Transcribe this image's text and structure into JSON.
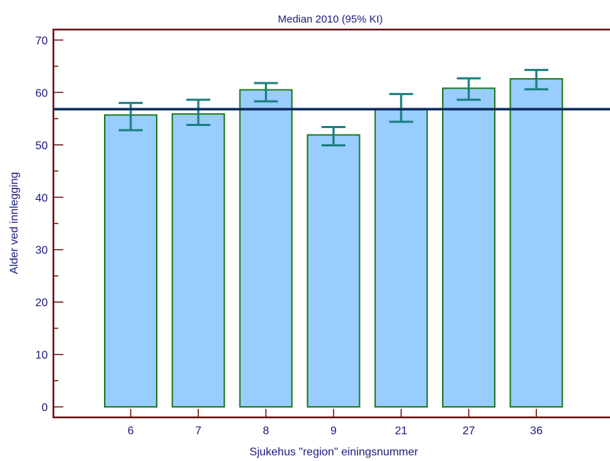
{
  "chart_data": {
    "type": "bar",
    "title": "Median 2010 (95% KI)",
    "xlabel": "Sjukehus \"region\" einingsnummer",
    "ylabel": "Alder ved innlegging",
    "categories": [
      "6",
      "7",
      "8",
      "9",
      "21",
      "27",
      "36"
    ],
    "values": [
      55.7,
      55.9,
      60.5,
      51.9,
      56.9,
      60.8,
      62.6
    ],
    "ci_lower": [
      52.8,
      53.8,
      58.3,
      49.9,
      54.4,
      58.6,
      60.6
    ],
    "ci_upper": [
      58.0,
      58.6,
      61.8,
      53.4,
      59.7,
      62.7,
      64.3
    ],
    "reference_line": 56.8,
    "ylim": [
      -2,
      72
    ],
    "yticks": [
      0,
      10,
      20,
      30,
      40,
      50,
      60,
      70
    ],
    "grid": false,
    "colors": {
      "bar_fill": "#99ccff",
      "bar_stroke": "#1e7a1e",
      "errorbar": "#1a7f7f",
      "reference": "#0b2a5c",
      "axis_frame": "#6b0f0f",
      "text": "#1a1a80"
    }
  }
}
